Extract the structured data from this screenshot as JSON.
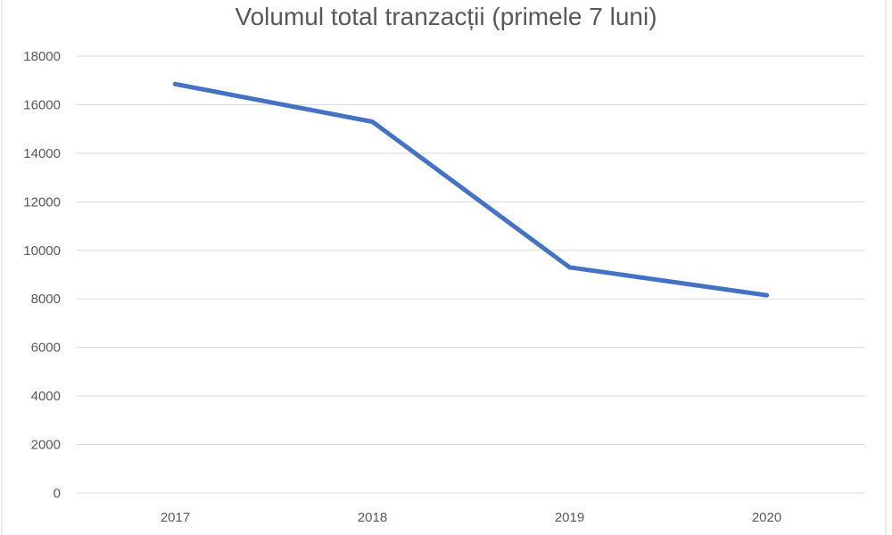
{
  "chart_data": {
    "type": "line",
    "title": "Volumul total tranzacții (primele 7 luni)",
    "xlabel": "",
    "ylabel": "",
    "categories": [
      "2017",
      "2018",
      "2019",
      "2020"
    ],
    "series": [
      {
        "values": [
          16850,
          15300,
          9300,
          8150
        ],
        "color": "#4472c4"
      }
    ],
    "ylim": [
      0,
      18000
    ],
    "yticks": [
      0,
      2000,
      4000,
      6000,
      8000,
      10000,
      12000,
      14000,
      16000,
      18000
    ],
    "grid": true,
    "legend": "none"
  }
}
